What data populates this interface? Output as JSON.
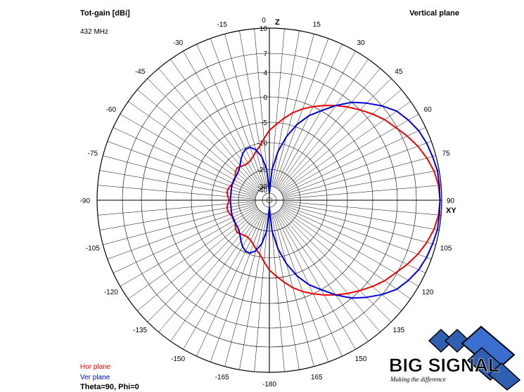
{
  "header": {
    "left_title": "Tot-gain [dBi]",
    "right_title": "Vertical plane",
    "frequency": "432 MHz"
  },
  "legend": {
    "hor_label": "Hor plane",
    "ver_label": "Ver plane",
    "angles": "Theta=90, Phi=0"
  },
  "logo": {
    "name": "BIG SIGNAL",
    "tagline": "Making the difference"
  },
  "chart_data": {
    "type": "polar",
    "title": "Tot-gain [dBi]",
    "subtitle": "Vertical plane",
    "radial_ticks": [
      "10",
      "7",
      "4",
      "0",
      "-5",
      "-10",
      "-20",
      "-30",
      "-40"
    ],
    "radial_values": [
      10,
      7,
      4,
      0,
      -5,
      -10,
      -20,
      -30,
      -40
    ],
    "angle_ticks": [
      0,
      15,
      30,
      45,
      60,
      75,
      90,
      105,
      120,
      135,
      150,
      165,
      -180,
      -165,
      -150,
      -135,
      -120,
      -105,
      -90,
      -75,
      -60,
      -45,
      -30,
      -15
    ],
    "axis_labels": {
      "top": "Z",
      "right": "XY"
    },
    "colors": {
      "hor": "#ee0000",
      "ver": "#0000dd",
      "grid": "#000000"
    },
    "series": [
      {
        "name": "Hor plane",
        "color": "#ee0000",
        "angles": [
          0,
          5,
          10,
          15,
          20,
          25,
          30,
          35,
          40,
          45,
          50,
          55,
          60,
          65,
          70,
          75,
          80,
          85,
          90,
          95,
          100,
          105,
          110,
          115,
          120,
          125,
          130,
          135,
          140,
          145,
          150,
          155,
          160,
          165,
          170,
          175,
          180,
          -175,
          -170,
          -165,
          -160,
          -155,
          -150,
          -145,
          -140,
          -135,
          -130,
          -125,
          -120,
          -115,
          -110,
          -105,
          -100,
          -95,
          -90,
          -85,
          -80,
          -75,
          -70,
          -65,
          -60,
          -55,
          -50,
          -45,
          -40,
          -35,
          -30,
          -25,
          -20,
          -15,
          -10,
          -5
        ],
        "values": [
          -7,
          -5.5,
          -4,
          -2.5,
          -1.2,
          0,
          1,
          2,
          3,
          4,
          5,
          6,
          6.8,
          7.6,
          8.3,
          8.9,
          9.4,
          9.7,
          9.8,
          9.7,
          9.4,
          8.9,
          8.3,
          7.6,
          6.8,
          6,
          5,
          4,
          3,
          2,
          1,
          0,
          -1.2,
          -2.5,
          -4,
          -5.5,
          -7,
          -9,
          -11,
          -12.5,
          -14,
          -15,
          -15.5,
          -15.5,
          -15,
          -14.5,
          -15,
          -16,
          -16.5,
          -16.5,
          -16,
          -15.5,
          -15.5,
          -16,
          -16.5,
          -16,
          -15.5,
          -15.5,
          -16,
          -16.5,
          -16.5,
          -16,
          -15,
          -14.5,
          -15,
          -15.5,
          -15.5,
          -15,
          -14,
          -12.5,
          -11,
          -9
        ]
      },
      {
        "name": "Ver plane",
        "color": "#0000dd",
        "angles": [
          0,
          5,
          10,
          15,
          20,
          25,
          30,
          35,
          40,
          45,
          50,
          55,
          60,
          65,
          70,
          75,
          80,
          85,
          90,
          95,
          100,
          105,
          110,
          115,
          120,
          125,
          130,
          135,
          140,
          145,
          150,
          155,
          160,
          165,
          170,
          175,
          180,
          -175,
          -170,
          -165,
          -160,
          -155,
          -150,
          -145,
          -140,
          -135,
          -130,
          -125,
          -120,
          -115,
          -110,
          -105,
          -100,
          -95,
          -90,
          -85,
          -80,
          -75,
          -70,
          -65,
          -60,
          -55,
          -50,
          -45,
          -40,
          -35,
          -30,
          -25,
          -20,
          -15,
          -10,
          -5
        ],
        "values": [
          -40,
          -20,
          -13,
          -8,
          -4.5,
          -2,
          0,
          2,
          4,
          5.5,
          7,
          8,
          8.6,
          9.1,
          9.4,
          9.6,
          9.8,
          9.8,
          9.8,
          9.8,
          9.8,
          9.6,
          9.4,
          9.1,
          8.6,
          8,
          7,
          5.5,
          4,
          2,
          0,
          -2,
          -4.5,
          -8,
          -13,
          -20,
          -40,
          -20,
          -15,
          -12,
          -10.5,
          -10.5,
          -11.5,
          -13,
          -14.5,
          -15.5,
          -16,
          -16.2,
          -16.2,
          -16.4,
          -16.6,
          -16.8,
          -17,
          -17,
          -17,
          -17,
          -17,
          -16.8,
          -16.6,
          -16.4,
          -16.2,
          -16.2,
          -16,
          -15.5,
          -14.5,
          -13,
          -11.5,
          -10.5,
          -10.5,
          -12,
          -15,
          -20
        ]
      }
    ]
  }
}
